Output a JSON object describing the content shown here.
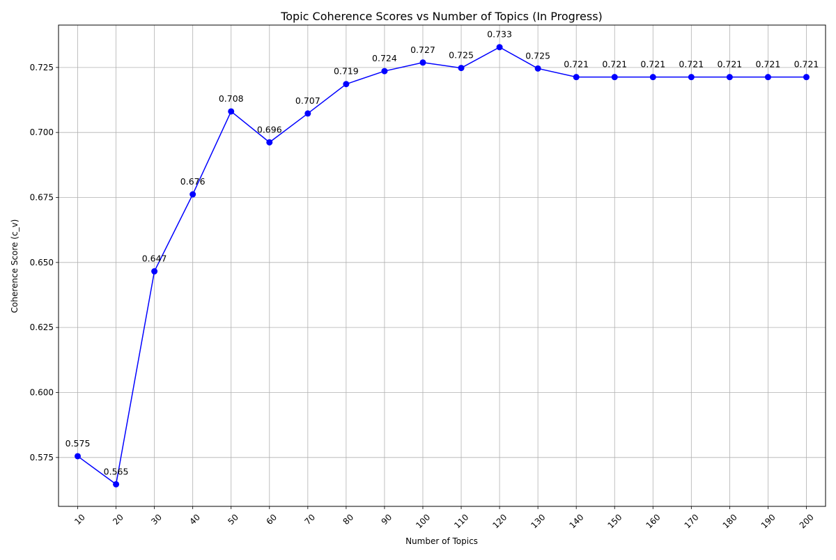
{
  "chart_data": {
    "type": "line",
    "title": "Topic Coherence Scores vs Number of Topics (In Progress)",
    "xlabel": "Number of Topics",
    "ylabel": "Coherence Score (c_v)",
    "x": [
      10,
      20,
      30,
      40,
      50,
      60,
      70,
      80,
      90,
      100,
      110,
      120,
      130,
      140,
      150,
      160,
      170,
      180,
      190,
      200
    ],
    "x_tick_labels": [
      "10",
      "20",
      "30",
      "40",
      "50",
      "60",
      "70",
      "80",
      "90",
      "100",
      "110",
      "120",
      "130",
      "140",
      "150",
      "160",
      "170",
      "180",
      "190",
      "200"
    ],
    "series": [
      {
        "values": [
          0.5755,
          0.5647,
          0.6466,
          0.6762,
          0.7081,
          0.6962,
          0.7073,
          0.7186,
          0.7236,
          0.7269,
          0.7248,
          0.7328,
          0.7246,
          0.7213,
          0.7213,
          0.7213,
          0.7213,
          0.7213,
          0.7213,
          0.7213
        ],
        "data_labels": [
          "0.575",
          "0.565",
          "0.647",
          "0.676",
          "0.708",
          "0.696",
          "0.707",
          "0.719",
          "0.724",
          "0.727",
          "0.725",
          "0.733",
          "0.725",
          "0.721",
          "0.721",
          "0.721",
          "0.721",
          "0.721",
          "0.721",
          "0.721"
        ],
        "color": "#0000ff",
        "marker": "circle"
      }
    ],
    "y_ticks": [
      0.575,
      0.6,
      0.625,
      0.65,
      0.675,
      0.7,
      0.725
    ],
    "y_tick_labels": [
      "0.575",
      "0.600",
      "0.625",
      "0.650",
      "0.675",
      "0.700",
      "0.725"
    ],
    "xlim": [
      0.5,
      20.5
    ],
    "ylim": [
      0.5562,
      0.7413
    ],
    "grid": true,
    "x_tick_rotation": 45,
    "axes_color": "#000000",
    "grid_color": "#b0b0b0"
  }
}
